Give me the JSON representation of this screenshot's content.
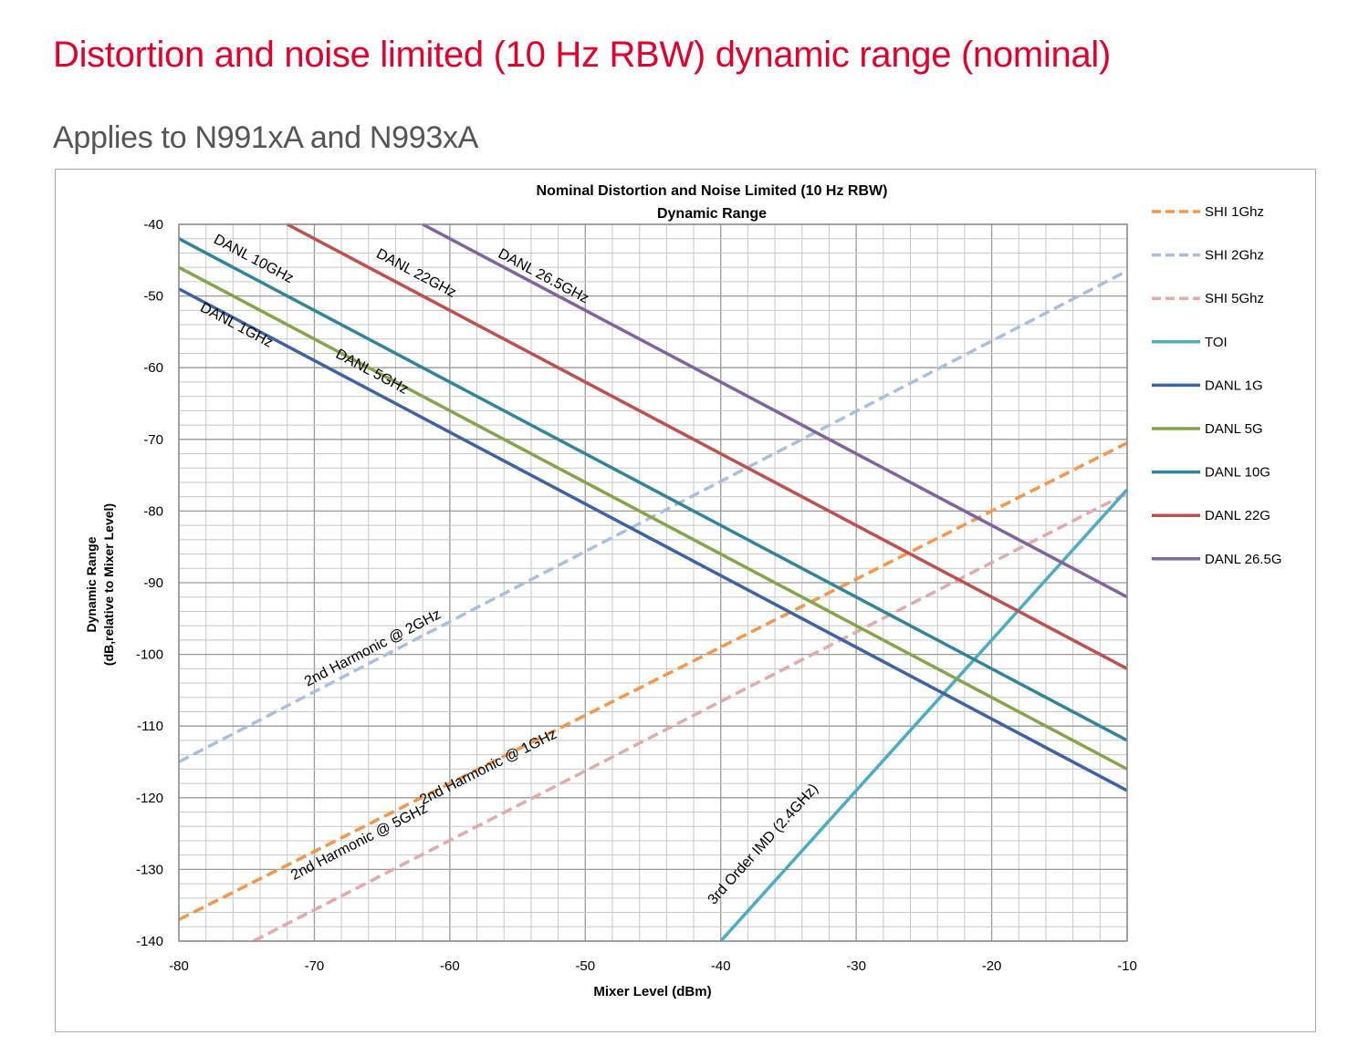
{
  "page": {
    "title": "Distortion and noise limited (10 Hz RBW) dynamic range (nominal)",
    "subtitle": "Applies to N991xA and N993xA"
  },
  "chart_data": {
    "type": "line",
    "title": "Nominal Distortion and Noise Limited (10 Hz RBW)",
    "title_line2": "Dynamic Range",
    "xlabel": "Mixer Level (dBm)",
    "ylabel": "Dynamic Range",
    "ylabel_line2": "(dB,relative to Mixer Level)",
    "xlim": [
      -80,
      -10
    ],
    "ylim": [
      -140,
      -40
    ],
    "x_ticks": [
      "-80",
      "-70",
      "-60",
      "-50",
      "-40",
      "-30",
      "-20",
      "-10"
    ],
    "y_ticks": [
      "-40",
      "-50",
      "-60",
      "-70",
      "-80",
      "-90",
      "-100",
      "-110",
      "-120",
      "-130",
      "-140"
    ],
    "grid": true,
    "legend_position": "right",
    "series": [
      {
        "name": "SHI 1Ghz",
        "color": "#f79646",
        "dashed": true,
        "x": [
          -80,
          -10
        ],
        "y": [
          -137,
          -70.5
        ]
      },
      {
        "name": "SHI 2Ghz",
        "color": "#a9bfe0",
        "dashed": true,
        "x": [
          -80,
          -10
        ],
        "y": [
          -115,
          -46.5
        ]
      },
      {
        "name": "SHI 5Ghz",
        "color": "#e2aaa8",
        "dashed": true,
        "x": [
          -74.5,
          -10
        ],
        "y": [
          -140,
          -77.5
        ]
      },
      {
        "name": "TOI",
        "color": "#4bacc6",
        "dashed": false,
        "x": [
          -40,
          -10
        ],
        "y": [
          -140,
          -77
        ]
      },
      {
        "name": "DANL 1G",
        "color": "#3d63a6",
        "dashed": false,
        "x": [
          -80,
          -10
        ],
        "y": [
          -49,
          -119
        ]
      },
      {
        "name": "DANL 5G",
        "color": "#84a54a",
        "dashed": false,
        "x": [
          -80,
          -10
        ],
        "y": [
          -46,
          -116
        ]
      },
      {
        "name": "DANL 10G",
        "color": "#31849b",
        "dashed": false,
        "x": [
          -80,
          -10
        ],
        "y": [
          -42,
          -112
        ]
      },
      {
        "name": "DANL 22G",
        "color": "#c0504d",
        "dashed": false,
        "x": [
          -72,
          -10
        ],
        "y": [
          -40,
          -102
        ]
      },
      {
        "name": "DANL 26.5G",
        "color": "#8064a2",
        "dashed": false,
        "x": [
          -62,
          -10
        ],
        "y": [
          -40,
          -92
        ]
      }
    ],
    "annotations": [
      {
        "text": "DANL 10GHz",
        "x": -77.5,
        "y": -42.5
      },
      {
        "text": "DANL 22GHz",
        "x": -65.5,
        "y": -44.5
      },
      {
        "text": "DANL 26.5GHz",
        "x": -56.5,
        "y": -44.5
      },
      {
        "text": "DANL 1GHz",
        "x": -78.5,
        "y": -52
      },
      {
        "text": "DANL 5GHz",
        "x": -68.5,
        "y": -58.5
      },
      {
        "text": "2nd Harmonic @ 2GHz",
        "x": -70.5,
        "y": -104.5
      },
      {
        "text": "2nd Harmonic @ 1GHz",
        "x": -62,
        "y": -121
      },
      {
        "text": "2nd Harmonic @ 5GHz",
        "x": -71.5,
        "y": -131.5
      },
      {
        "text": "3rd Order IMD (2.4GHz)",
        "x": -40.5,
        "y": -135
      }
    ]
  }
}
